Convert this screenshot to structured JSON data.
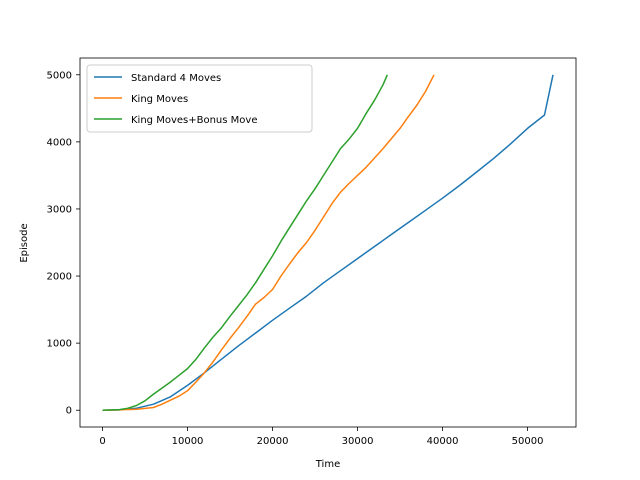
{
  "chart_data": {
    "type": "line",
    "title": "",
    "xlabel": "Time",
    "ylabel": "Episode",
    "xlim": [
      -2650,
      55700
    ],
    "ylim": [
      -250,
      5250
    ],
    "xticks": [
      0,
      10000,
      20000,
      30000,
      40000,
      50000
    ],
    "xtick_labels": [
      "0",
      "10000",
      "20000",
      "30000",
      "40000",
      "50000"
    ],
    "yticks": [
      0,
      1000,
      2000,
      3000,
      4000,
      5000
    ],
    "ytick_labels": [
      "0",
      "1000",
      "2000",
      "3000",
      "4000",
      "5000"
    ],
    "grid": false,
    "legend_position": "upper-left",
    "series": [
      {
        "name": "Standard 4 Moves",
        "color": "#1f77b4",
        "x": [
          0,
          2000,
          4000,
          6000,
          8000,
          10000,
          12000,
          14000,
          16000,
          18000,
          20000,
          22000,
          24000,
          26000,
          28000,
          30000,
          32000,
          34000,
          36000,
          38000,
          40000,
          42000,
          44000,
          46000,
          48000,
          50000,
          52000,
          53000
        ],
        "y": [
          0,
          5,
          30,
          90,
          200,
          370,
          560,
          760,
          960,
          1150,
          1340,
          1520,
          1700,
          1900,
          2080,
          2260,
          2440,
          2620,
          2800,
          2980,
          3160,
          3350,
          3550,
          3750,
          3970,
          4200,
          4400,
          5000
        ]
      },
      {
        "name": "King Moves",
        "color": "#ff7f0e",
        "x": [
          0,
          2000,
          4000,
          6000,
          7000,
          8000,
          9000,
          10000,
          11000,
          12000,
          13000,
          14000,
          15000,
          16000,
          17000,
          18000,
          19000,
          20000,
          21000,
          22000,
          23000,
          24000,
          25000,
          26000,
          27000,
          28000,
          29000,
          30000,
          31000,
          32000,
          33000,
          34000,
          35000,
          36000,
          37000,
          38000,
          39000
        ],
        "y": [
          0,
          5,
          15,
          40,
          90,
          150,
          210,
          290,
          420,
          560,
          720,
          900,
          1070,
          1230,
          1400,
          1580,
          1680,
          1800,
          2000,
          2180,
          2350,
          2500,
          2680,
          2880,
          3080,
          3250,
          3380,
          3500,
          3620,
          3760,
          3900,
          4050,
          4200,
          4380,
          4550,
          4750,
          5000
        ]
      },
      {
        "name": "King Moves+Bonus Move",
        "color": "#2ca02c",
        "x": [
          0,
          2000,
          3000,
          4000,
          5000,
          6000,
          7000,
          8000,
          9000,
          10000,
          11000,
          12000,
          13000,
          14000,
          15000,
          16000,
          17000,
          18000,
          19000,
          20000,
          21000,
          22000,
          23000,
          24000,
          25000,
          26000,
          27000,
          28000,
          29000,
          30000,
          31000,
          32000,
          33000,
          33500
        ],
        "y": [
          0,
          10,
          30,
          70,
          140,
          240,
          330,
          420,
          520,
          620,
          760,
          930,
          1090,
          1230,
          1400,
          1560,
          1720,
          1900,
          2100,
          2300,
          2520,
          2720,
          2920,
          3120,
          3300,
          3500,
          3700,
          3900,
          4040,
          4200,
          4420,
          4620,
          4850,
          5000
        ]
      }
    ]
  }
}
